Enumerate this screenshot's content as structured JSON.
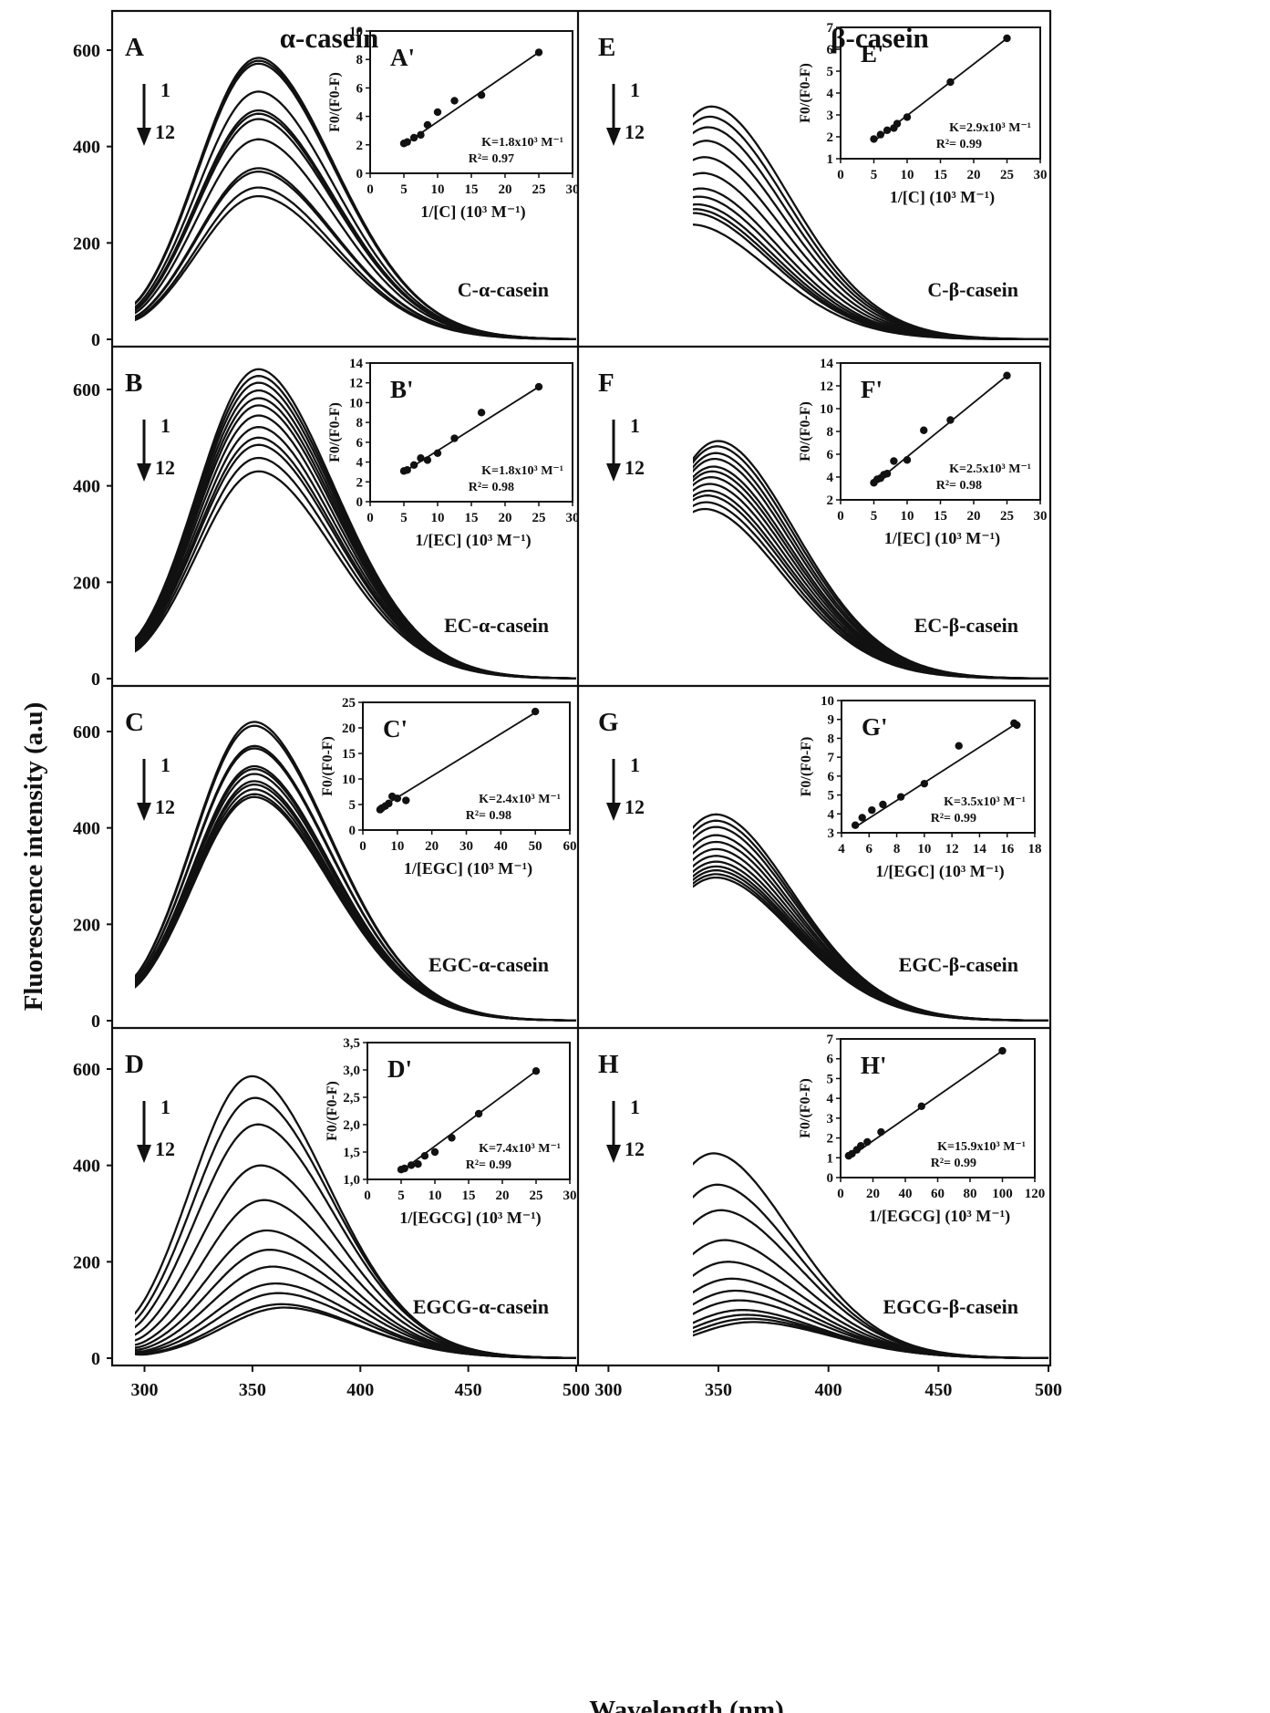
{
  "figure": {
    "ylabel": "Fluorescence intensity (a.u)",
    "xlabel": "Wavelength (nm)",
    "column_titles": [
      "α-casein",
      "β-casein"
    ],
    "arrow": {
      "start": "1",
      "end": "12"
    }
  },
  "chart_data": [
    {
      "type": "line",
      "panel": "A",
      "label": "C-α-casein",
      "xlim": [
        285,
        500
      ],
      "ylim": [
        0,
        700
      ],
      "xticks": [
        300,
        350,
        400,
        450,
        500
      ],
      "yticks": [
        0,
        200,
        400,
        600
      ],
      "peak_x": 353,
      "shoulder": 0,
      "curve_count": 12,
      "peak_values": [
        584,
        578,
        572,
        514,
        475,
        468,
        457,
        415,
        355,
        348,
        315,
        297
      ]
    },
    {
      "type": "line",
      "panel": "B",
      "label": "EC-α-casein",
      "xlim": [
        285,
        500
      ],
      "ylim": [
        0,
        700
      ],
      "xticks": [
        300,
        350,
        400,
        450,
        500
      ],
      "yticks": [
        0,
        200,
        400,
        600
      ],
      "peak_x": 353,
      "shoulder": 0,
      "curve_count": 12,
      "peak_values": [
        642,
        628,
        614,
        598,
        582,
        567,
        546,
        522,
        500,
        485,
        458,
        430
      ]
    },
    {
      "type": "line",
      "panel": "C",
      "label": "EGC-α-casein",
      "xlim": [
        285,
        500
      ],
      "ylim": [
        0,
        700
      ],
      "xticks": [
        300,
        350,
        400,
        450,
        500
      ],
      "yticks": [
        0,
        200,
        400,
        600
      ],
      "peak_x": 351,
      "shoulder": 0,
      "curve_count": 12,
      "peak_values": [
        620,
        612,
        570,
        565,
        528,
        522,
        512,
        497,
        490,
        480,
        470,
        464
      ]
    },
    {
      "type": "line",
      "panel": "D",
      "label": "EGCG-α-casein",
      "xlim": [
        285,
        500
      ],
      "ylim": [
        0,
        700
      ],
      "xticks": [
        300,
        350,
        400,
        450,
        500
      ],
      "yticks": [
        0,
        200,
        400,
        600
      ],
      "peak_x": 350,
      "peak_x_end": 365,
      "shoulder": 0,
      "curve_count": 12,
      "peak_values": [
        585,
        540,
        485,
        400,
        328,
        265,
        225,
        190,
        155,
        135,
        112,
        105
      ]
    },
    {
      "type": "line",
      "panel": "E",
      "label": "C-β-casein",
      "xlim": [
        287,
        500
      ],
      "ylim": [
        0,
        700
      ],
      "xticks": [
        300,
        350,
        400,
        450,
        500
      ],
      "peak_x": 347,
      "peak_x_end": 338,
      "shoulder": 0,
      "curve_count": 12,
      "peak_values": [
        483,
        462,
        440,
        412,
        378,
        345,
        313,
        296,
        280,
        270,
        262,
        238
      ]
    },
    {
      "type": "line",
      "panel": "F",
      "label": "EC-β-casein",
      "xlim": [
        287,
        500
      ],
      "ylim": [
        0,
        700
      ],
      "xticks": [
        300,
        350,
        400,
        450,
        500
      ],
      "peak_x": 350,
      "peak_x_end": 344,
      "shoulder": 1,
      "curve_count": 12,
      "peak_values": [
        493,
        482,
        468,
        456,
        440,
        430,
        418,
        404,
        390,
        380,
        366,
        352
      ]
    },
    {
      "type": "line",
      "panel": "G",
      "label": "EGC-β-casein",
      "xlim": [
        287,
        500
      ],
      "ylim": [
        0,
        700
      ],
      "xticks": [
        300,
        350,
        400,
        450,
        500
      ],
      "peak_x": 349,
      "shoulder": 0,
      "curve_count": 12,
      "peak_values": [
        428,
        415,
        402,
        385,
        371,
        356,
        342,
        330,
        320,
        312,
        304,
        297
      ]
    },
    {
      "type": "line",
      "panel": "H",
      "label": "EGCG-β-casein",
      "xlim": [
        287,
        500
      ],
      "ylim": [
        0,
        700
      ],
      "xticks": [
        300,
        350,
        400,
        450,
        500
      ],
      "peak_x": 348,
      "peak_x_end": 366,
      "shoulder": 0,
      "curve_count": 12,
      "peak_values": [
        425,
        360,
        307,
        245,
        200,
        165,
        140,
        120,
        100,
        90,
        82,
        75
      ]
    },
    {
      "type": "scatter",
      "panel": "A'",
      "ylabel": "F0/(F0-F)",
      "xlabel": "1/[C] (10³ M⁻¹)",
      "xlim": [
        0,
        30
      ],
      "ylim": [
        0,
        10
      ],
      "xticks": [
        0,
        5,
        10,
        15,
        20,
        25,
        30
      ],
      "yticks": [
        0,
        2,
        4,
        6,
        8,
        10
      ],
      "points": [
        [
          5,
          2.1
        ],
        [
          5.5,
          2.2
        ],
        [
          6.5,
          2.5
        ],
        [
          7.5,
          2.7
        ],
        [
          8.5,
          3.4
        ],
        [
          10,
          4.3
        ],
        [
          12.5,
          5.1
        ],
        [
          16.5,
          5.5
        ],
        [
          25,
          8.5
        ]
      ],
      "fit": [
        [
          5,
          2.0
        ],
        [
          25,
          8.5
        ]
      ],
      "K": "K=1.8x10³ M⁻¹",
      "R2": "R²= 0.97"
    },
    {
      "type": "scatter",
      "panel": "B'",
      "ylabel": "F0/(F0-F)",
      "xlabel": "1/[EC] (10³ M⁻¹)",
      "xlim": [
        0,
        30
      ],
      "ylim": [
        0,
        14
      ],
      "xticks": [
        0,
        5,
        10,
        15,
        20,
        25,
        30
      ],
      "yticks": [
        0,
        2,
        4,
        6,
        8,
        10,
        12,
        14
      ],
      "points": [
        [
          5,
          3.1
        ],
        [
          5.5,
          3.2
        ],
        [
          6.5,
          3.7
        ],
        [
          7.5,
          4.4
        ],
        [
          8.5,
          4.2
        ],
        [
          10,
          4.9
        ],
        [
          12.5,
          6.4
        ],
        [
          16.5,
          9.0
        ],
        [
          25,
          11.6
        ]
      ],
      "fit": [
        [
          5,
          3.0
        ],
        [
          25,
          11.6
        ]
      ],
      "K": "K=1.8x10³ M⁻¹",
      "R2": "R²= 0.98"
    },
    {
      "type": "scatter",
      "panel": "C'",
      "ylabel": "F0/(F0-F)",
      "xlabel": "1/[EGC] (10³ M⁻¹)",
      "xlim": [
        0,
        60
      ],
      "ylim": [
        0,
        25
      ],
      "xticks": [
        0,
        10,
        20,
        30,
        40,
        50,
        60
      ],
      "yticks": [
        0,
        5,
        10,
        15,
        20,
        25
      ],
      "points": [
        [
          5,
          4.0
        ],
        [
          5.5,
          4.3
        ],
        [
          6.5,
          4.7
        ],
        [
          7.5,
          5.2
        ],
        [
          8.5,
          6.6
        ],
        [
          10,
          6.2
        ],
        [
          12.5,
          5.8
        ],
        [
          50,
          23.2
        ]
      ],
      "fit": [
        [
          5,
          4.3
        ],
        [
          50,
          23.0
        ]
      ],
      "K": "K=2.4x10³ M⁻¹",
      "R2": "R²= 0.98"
    },
    {
      "type": "scatter",
      "panel": "D'",
      "ylabel": "F0/(F0-F)",
      "xlabel": "1/[EGCG] (10³ M⁻¹)",
      "xlim": [
        0,
        30
      ],
      "ylim": [
        1.0,
        3.5
      ],
      "xticks": [
        0,
        5,
        10,
        15,
        20,
        25,
        30
      ],
      "yticks": [
        1.0,
        1.5,
        2.0,
        2.5,
        3.0,
        3.5
      ],
      "ytick_labels": [
        "1,0",
        "1,5",
        "2,0",
        "2,5",
        "3,0",
        "3,5"
      ],
      "points": [
        [
          5,
          1.18
        ],
        [
          5.5,
          1.2
        ],
        [
          6.5,
          1.26
        ],
        [
          7.5,
          1.28
        ],
        [
          8.5,
          1.43
        ],
        [
          10,
          1.5
        ],
        [
          12.5,
          1.76
        ],
        [
          16.5,
          2.2
        ],
        [
          25,
          2.98
        ]
      ],
      "fit": [
        [
          5,
          1.15
        ],
        [
          25,
          2.98
        ]
      ],
      "K": "K=7.4x10³ M⁻¹",
      "R2": "R²= 0.99"
    },
    {
      "type": "scatter",
      "panel": "E'",
      "ylabel": "F0/(F0-F)",
      "xlabel": "1/[C] (10³ M⁻¹)",
      "xlim": [
        0,
        30
      ],
      "ylim": [
        1,
        7
      ],
      "xticks": [
        0,
        5,
        10,
        15,
        20,
        25,
        30
      ],
      "yticks": [
        1,
        2,
        3,
        4,
        5,
        6,
        7
      ],
      "points": [
        [
          5,
          1.9
        ],
        [
          6,
          2.1
        ],
        [
          7,
          2.3
        ],
        [
          8,
          2.4
        ],
        [
          8.5,
          2.6
        ],
        [
          10,
          2.9
        ],
        [
          16.5,
          4.5
        ],
        [
          25,
          6.5
        ]
      ],
      "fit": [
        [
          5,
          1.8
        ],
        [
          25,
          6.5
        ]
      ],
      "K": "K=2.9x10³ M⁻¹",
      "R2": "R²= 0.99"
    },
    {
      "type": "scatter",
      "panel": "F'",
      "ylabel": "F0/(F0-F)",
      "xlabel": "1/[EC] (10³ M⁻¹)",
      "xlim": [
        0,
        30
      ],
      "ylim": [
        2,
        14
      ],
      "xticks": [
        0,
        5,
        10,
        15,
        20,
        25,
        30
      ],
      "yticks": [
        2,
        4,
        6,
        8,
        10,
        12,
        14
      ],
      "points": [
        [
          5,
          3.5
        ],
        [
          5.5,
          3.8
        ],
        [
          6,
          3.9
        ],
        [
          6.5,
          4.2
        ],
        [
          7,
          4.3
        ],
        [
          8,
          5.4
        ],
        [
          10,
          5.5
        ],
        [
          12.5,
          8.1
        ],
        [
          16.5,
          9.0
        ],
        [
          25,
          12.9
        ]
      ],
      "fit": [
        [
          5,
          3.4
        ],
        [
          25,
          12.9
        ]
      ],
      "K": "K=2.5x10³ M⁻¹",
      "R2": "R²= 0.98"
    },
    {
      "type": "scatter",
      "panel": "G'",
      "ylabel": "F0/(F0-F)",
      "xlabel": "1/[EGC] (10³ M⁻¹)",
      "xlim": [
        4,
        18
      ],
      "ylim": [
        3,
        10
      ],
      "xticks": [
        4,
        6,
        8,
        10,
        12,
        14,
        16,
        18
      ],
      "yticks": [
        3,
        4,
        5,
        6,
        7,
        8,
        9,
        10
      ],
      "points": [
        [
          5,
          3.4
        ],
        [
          5.5,
          3.8
        ],
        [
          6.2,
          4.2
        ],
        [
          7,
          4.5
        ],
        [
          8.3,
          4.9
        ],
        [
          10,
          5.6
        ],
        [
          12.5,
          7.6
        ],
        [
          16.5,
          8.8
        ],
        [
          16.7,
          8.7
        ]
      ],
      "fit": [
        [
          5,
          3.3
        ],
        [
          16.7,
          8.8
        ]
      ],
      "K": "K=3.5x10³ M⁻¹",
      "R2": "R²= 0.99"
    },
    {
      "type": "scatter",
      "panel": "H'",
      "ylabel": "F0/(F0-F)",
      "xlabel": "1/[EGCG] (10³ M⁻¹)",
      "xlim": [
        0,
        120
      ],
      "ylim": [
        0,
        7
      ],
      "xticks": [
        0,
        20,
        40,
        60,
        80,
        100,
        120
      ],
      "yticks": [
        0,
        1,
        2,
        3,
        4,
        5,
        6,
        7
      ],
      "points": [
        [
          5,
          1.1
        ],
        [
          7,
          1.2
        ],
        [
          10,
          1.4
        ],
        [
          12.5,
          1.6
        ],
        [
          16.5,
          1.8
        ],
        [
          25,
          2.3
        ],
        [
          50,
          3.6
        ],
        [
          100,
          6.4
        ]
      ],
      "fit": [
        [
          5,
          1.0
        ],
        [
          100,
          6.4
        ]
      ],
      "K": "K=15.9x10³ M⁻¹",
      "R2": "R²= 0.99"
    }
  ]
}
